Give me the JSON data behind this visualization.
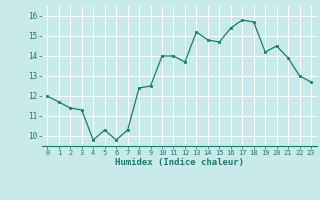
{
  "x": [
    0,
    1,
    2,
    3,
    4,
    5,
    6,
    7,
    8,
    9,
    10,
    11,
    12,
    13,
    14,
    15,
    16,
    17,
    18,
    19,
    20,
    21,
    22,
    23
  ],
  "y": [
    12.0,
    11.7,
    11.4,
    11.3,
    9.8,
    10.3,
    9.8,
    10.3,
    12.4,
    12.5,
    14.0,
    14.0,
    13.7,
    15.2,
    14.8,
    14.7,
    15.4,
    15.8,
    15.7,
    14.2,
    14.5,
    13.9,
    13.0,
    12.7
  ],
  "xlabel": "Humidex (Indice chaleur)",
  "line_color": "#1a7a6e",
  "marker_color": "#1a7a6e",
  "bg_color": "#c8eaea",
  "grid_color": "#ffffff",
  "ylim": [
    9.5,
    16.5
  ],
  "xlim": [
    -0.5,
    23.5
  ],
  "yticks": [
    10,
    11,
    12,
    13,
    14,
    15,
    16
  ],
  "xticks": [
    0,
    1,
    2,
    3,
    4,
    5,
    6,
    7,
    8,
    9,
    10,
    11,
    12,
    13,
    14,
    15,
    16,
    17,
    18,
    19,
    20,
    21,
    22,
    23
  ],
  "figsize": [
    3.2,
    2.0
  ],
  "dpi": 100
}
